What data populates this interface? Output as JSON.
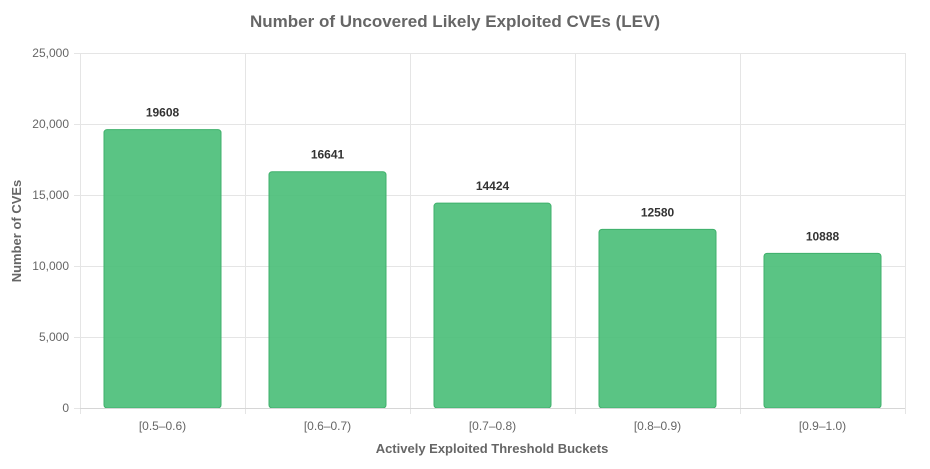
{
  "chart_data": {
    "type": "bar",
    "title": "Number of Uncovered Likely Exploited CVEs (LEV)",
    "xlabel": "Actively Exploited Threshold Buckets",
    "ylabel": "Number of CVEs",
    "categories": [
      "[0.5–0.6)",
      "[0.6–0.7)",
      "[0.7–0.8)",
      "[0.8–0.9)",
      "[0.9–1.0)"
    ],
    "values": [
      19608,
      16641,
      14424,
      12580,
      10888
    ],
    "data_labels": [
      "19608",
      "16641",
      "14424",
      "12580",
      "10888"
    ],
    "ylim": [
      0,
      25000
    ],
    "yticks": [
      0,
      5000,
      10000,
      15000,
      20000,
      25000
    ],
    "ytick_labels": [
      "0",
      "5,000",
      "10,000",
      "15,000",
      "20,000",
      "25,000"
    ],
    "grid": true,
    "legend": "none",
    "bar_color": "#4cbf79",
    "bar_border_color": "#3fb06b"
  }
}
